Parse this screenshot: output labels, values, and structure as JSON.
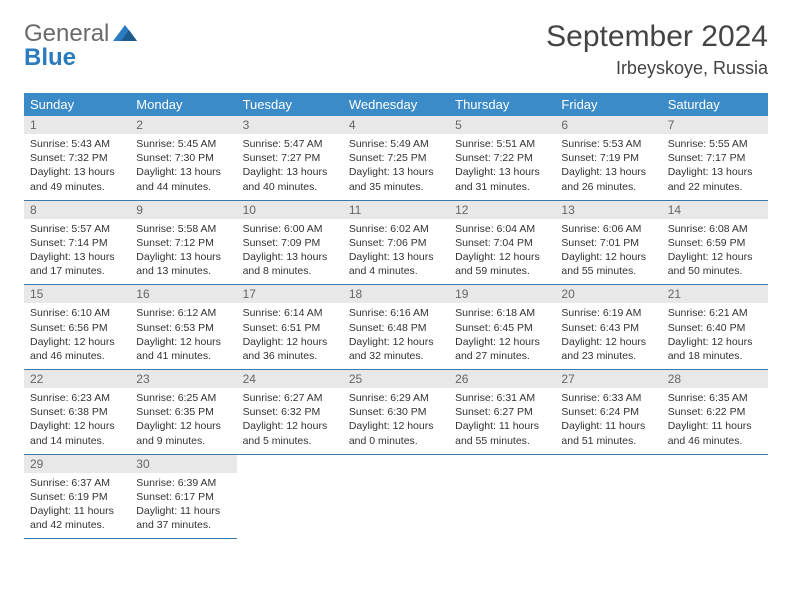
{
  "logo": {
    "part1": "General",
    "part2": "Blue"
  },
  "title": "September 2024",
  "location": "Irbeyskoye, Russia",
  "colors": {
    "header_bg": "#3b8bc9",
    "header_text": "#ffffff",
    "daynum_bg": "#e8e8e8",
    "daynum_text": "#666666",
    "row_border": "#3b7aa8",
    "logo_gray": "#6a6a6a",
    "logo_blue": "#2b7bbf"
  },
  "day_names": [
    "Sunday",
    "Monday",
    "Tuesday",
    "Wednesday",
    "Thursday",
    "Friday",
    "Saturday"
  ],
  "weeks": [
    [
      {
        "n": "1",
        "sr": "Sunrise: 5:43 AM",
        "ss": "Sunset: 7:32 PM",
        "dl": "Daylight: 13 hours and 49 minutes."
      },
      {
        "n": "2",
        "sr": "Sunrise: 5:45 AM",
        "ss": "Sunset: 7:30 PM",
        "dl": "Daylight: 13 hours and 44 minutes."
      },
      {
        "n": "3",
        "sr": "Sunrise: 5:47 AM",
        "ss": "Sunset: 7:27 PM",
        "dl": "Daylight: 13 hours and 40 minutes."
      },
      {
        "n": "4",
        "sr": "Sunrise: 5:49 AM",
        "ss": "Sunset: 7:25 PM",
        "dl": "Daylight: 13 hours and 35 minutes."
      },
      {
        "n": "5",
        "sr": "Sunrise: 5:51 AM",
        "ss": "Sunset: 7:22 PM",
        "dl": "Daylight: 13 hours and 31 minutes."
      },
      {
        "n": "6",
        "sr": "Sunrise: 5:53 AM",
        "ss": "Sunset: 7:19 PM",
        "dl": "Daylight: 13 hours and 26 minutes."
      },
      {
        "n": "7",
        "sr": "Sunrise: 5:55 AM",
        "ss": "Sunset: 7:17 PM",
        "dl": "Daylight: 13 hours and 22 minutes."
      }
    ],
    [
      {
        "n": "8",
        "sr": "Sunrise: 5:57 AM",
        "ss": "Sunset: 7:14 PM",
        "dl": "Daylight: 13 hours and 17 minutes."
      },
      {
        "n": "9",
        "sr": "Sunrise: 5:58 AM",
        "ss": "Sunset: 7:12 PM",
        "dl": "Daylight: 13 hours and 13 minutes."
      },
      {
        "n": "10",
        "sr": "Sunrise: 6:00 AM",
        "ss": "Sunset: 7:09 PM",
        "dl": "Daylight: 13 hours and 8 minutes."
      },
      {
        "n": "11",
        "sr": "Sunrise: 6:02 AM",
        "ss": "Sunset: 7:06 PM",
        "dl": "Daylight: 13 hours and 4 minutes."
      },
      {
        "n": "12",
        "sr": "Sunrise: 6:04 AM",
        "ss": "Sunset: 7:04 PM",
        "dl": "Daylight: 12 hours and 59 minutes."
      },
      {
        "n": "13",
        "sr": "Sunrise: 6:06 AM",
        "ss": "Sunset: 7:01 PM",
        "dl": "Daylight: 12 hours and 55 minutes."
      },
      {
        "n": "14",
        "sr": "Sunrise: 6:08 AM",
        "ss": "Sunset: 6:59 PM",
        "dl": "Daylight: 12 hours and 50 minutes."
      }
    ],
    [
      {
        "n": "15",
        "sr": "Sunrise: 6:10 AM",
        "ss": "Sunset: 6:56 PM",
        "dl": "Daylight: 12 hours and 46 minutes."
      },
      {
        "n": "16",
        "sr": "Sunrise: 6:12 AM",
        "ss": "Sunset: 6:53 PM",
        "dl": "Daylight: 12 hours and 41 minutes."
      },
      {
        "n": "17",
        "sr": "Sunrise: 6:14 AM",
        "ss": "Sunset: 6:51 PM",
        "dl": "Daylight: 12 hours and 36 minutes."
      },
      {
        "n": "18",
        "sr": "Sunrise: 6:16 AM",
        "ss": "Sunset: 6:48 PM",
        "dl": "Daylight: 12 hours and 32 minutes."
      },
      {
        "n": "19",
        "sr": "Sunrise: 6:18 AM",
        "ss": "Sunset: 6:45 PM",
        "dl": "Daylight: 12 hours and 27 minutes."
      },
      {
        "n": "20",
        "sr": "Sunrise: 6:19 AM",
        "ss": "Sunset: 6:43 PM",
        "dl": "Daylight: 12 hours and 23 minutes."
      },
      {
        "n": "21",
        "sr": "Sunrise: 6:21 AM",
        "ss": "Sunset: 6:40 PM",
        "dl": "Daylight: 12 hours and 18 minutes."
      }
    ],
    [
      {
        "n": "22",
        "sr": "Sunrise: 6:23 AM",
        "ss": "Sunset: 6:38 PM",
        "dl": "Daylight: 12 hours and 14 minutes."
      },
      {
        "n": "23",
        "sr": "Sunrise: 6:25 AM",
        "ss": "Sunset: 6:35 PM",
        "dl": "Daylight: 12 hours and 9 minutes."
      },
      {
        "n": "24",
        "sr": "Sunrise: 6:27 AM",
        "ss": "Sunset: 6:32 PM",
        "dl": "Daylight: 12 hours and 5 minutes."
      },
      {
        "n": "25",
        "sr": "Sunrise: 6:29 AM",
        "ss": "Sunset: 6:30 PM",
        "dl": "Daylight: 12 hours and 0 minutes."
      },
      {
        "n": "26",
        "sr": "Sunrise: 6:31 AM",
        "ss": "Sunset: 6:27 PM",
        "dl": "Daylight: 11 hours and 55 minutes."
      },
      {
        "n": "27",
        "sr": "Sunrise: 6:33 AM",
        "ss": "Sunset: 6:24 PM",
        "dl": "Daylight: 11 hours and 51 minutes."
      },
      {
        "n": "28",
        "sr": "Sunrise: 6:35 AM",
        "ss": "Sunset: 6:22 PM",
        "dl": "Daylight: 11 hours and 46 minutes."
      }
    ],
    [
      {
        "n": "29",
        "sr": "Sunrise: 6:37 AM",
        "ss": "Sunset: 6:19 PM",
        "dl": "Daylight: 11 hours and 42 minutes."
      },
      {
        "n": "30",
        "sr": "Sunrise: 6:39 AM",
        "ss": "Sunset: 6:17 PM",
        "dl": "Daylight: 11 hours and 37 minutes."
      },
      null,
      null,
      null,
      null,
      null
    ]
  ]
}
